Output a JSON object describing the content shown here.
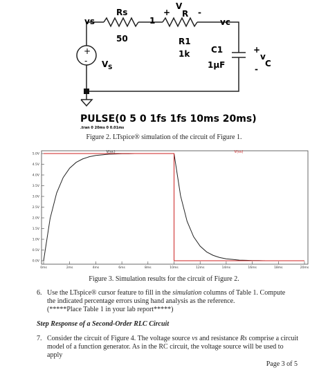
{
  "circuit": {
    "vs": "vs",
    "rs": "Rs",
    "rs_value": "50",
    "node1": "1",
    "vr_plus": "+",
    "vr_v": "V",
    "vr_r": "R",
    "vr_minus": "-",
    "vc": "vc",
    "r1": "R1",
    "r1_value": "1k",
    "c1": "C1",
    "c1_value": "1µF",
    "vc_plus": "+",
    "vc_v": "v",
    "vc_c": "C",
    "vc_minus": "-",
    "src_plus": "+",
    "src_minus": "-",
    "src_v": "V",
    "src_s": "S",
    "pulse": "PULSE(0 5 0 1fs 1fs 10ms 20ms)",
    "tran": ".tran 0 20ms 0 0.01ms"
  },
  "figure2_caption": "Figure 2.  LTspice® simulation of the circuit of Figure 1.",
  "chart_data": {
    "type": "line",
    "series": [
      {
        "name": "V(vc)",
        "color": "#222222",
        "x": [
          0,
          0.5,
          1,
          1.5,
          2,
          2.5,
          3,
          3.5,
          4,
          4.5,
          5,
          5.5,
          6,
          6.5,
          7,
          7.5,
          8,
          8.5,
          9,
          9.5,
          10,
          10.5,
          11,
          11.5,
          12,
          12.5,
          13,
          13.5,
          14,
          14.5,
          15,
          15.5,
          16,
          16.5,
          17,
          17.5,
          18,
          18.5,
          19,
          19.5,
          20
        ],
        "values": [
          0,
          1.97,
          3.16,
          3.88,
          4.32,
          4.59,
          4.75,
          4.85,
          4.91,
          4.94,
          4.97,
          4.98,
          4.99,
          4.99,
          5,
          5,
          5,
          5,
          5,
          5,
          5,
          3.03,
          1.84,
          1.12,
          0.68,
          0.41,
          0.25,
          0.15,
          0.09,
          0.06,
          0.03,
          0.02,
          0.01,
          0.01,
          0,
          0,
          0,
          0,
          0,
          0,
          0
        ]
      },
      {
        "name": "V(vs)",
        "color": "#cc2222",
        "x": [
          0,
          10,
          10,
          20
        ],
        "values": [
          5,
          5,
          0,
          0
        ]
      }
    ],
    "xlim": [
      0,
      20
    ],
    "ylim": [
      0,
      5
    ],
    "xticks": [
      {
        "value": 0,
        "label": "0ms"
      },
      {
        "value": 2,
        "label": "2ms"
      },
      {
        "value": 4,
        "label": "4ms"
      },
      {
        "value": 6,
        "label": "6ms"
      },
      {
        "value": 8,
        "label": "8ms"
      },
      {
        "value": 10,
        "label": "10ms"
      },
      {
        "value": 12,
        "label": "12ms"
      },
      {
        "value": 14,
        "label": "14ms"
      },
      {
        "value": 16,
        "label": "16ms"
      },
      {
        "value": 18,
        "label": "18ms"
      },
      {
        "value": 20,
        "label": "20ms"
      }
    ],
    "yticks": [
      {
        "value": 0,
        "label": "0.0V"
      },
      {
        "value": 0.5,
        "label": "0.5V"
      },
      {
        "value": 1,
        "label": "1.0V"
      },
      {
        "value": 1.5,
        "label": "1.5V"
      },
      {
        "value": 2,
        "label": "2.0V"
      },
      {
        "value": 2.5,
        "label": "2.5V"
      },
      {
        "value": 3,
        "label": "3.0V"
      },
      {
        "value": 3.5,
        "label": "3.5V"
      },
      {
        "value": 4,
        "label": "4.0V"
      },
      {
        "value": 4.5,
        "label": "4.5V"
      },
      {
        "value": 5,
        "label": "5.0V"
      }
    ],
    "grid": false
  },
  "figure3_caption": "Figure 3.  Simulation results for the circuit of Figure 2.",
  "item6": {
    "number": "6.",
    "text_a": "Use the LTspice® cursor feature to fill in the ",
    "text_italic": "simulation",
    "text_b": " columns of Table 1. Compute the indicated percentage errors using hand analysis as the reference.",
    "note": "(*****Place Table 1 in your lab report*****)"
  },
  "heading": "Step Response of a Second-Order RLC Circuit",
  "item7": {
    "number": "7.",
    "text_a": "Consider the circuit of Figure 4. The voltage source ",
    "vs": "vs",
    "text_b": " and resistance ",
    "rs": "Rs",
    "text_c": " comprise a circuit model of a function generator.  As in the RC circuit, the voltage source will be used to apply"
  },
  "footer": "Page 3 of 5"
}
